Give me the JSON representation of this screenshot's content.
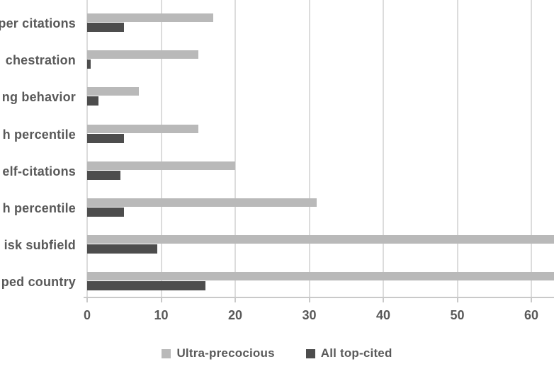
{
  "chart_data": {
    "type": "bar",
    "orientation": "horizontal",
    "title": "",
    "xlabel": "",
    "ylabel": "",
    "categories": [
      "per citations",
      "chestration",
      "ng behavior",
      "h percentile",
      "elf-citations",
      "h percentile",
      "isk subfield",
      "ped country"
    ],
    "categories_note": "category labels are truncated (clipped) at the left edge of the image; only these fragments are visible",
    "series": [
      {
        "name": "Ultra-precocious",
        "color": "#b9b9b9",
        "values": [
          17,
          15,
          7,
          15,
          20,
          31,
          67,
          67
        ],
        "clipped_at_right_edge": [
          false,
          false,
          false,
          false,
          false,
          false,
          true,
          true
        ],
        "values_note": "last two bars run past the right edge of the image; their true ends are not visible (>63)"
      },
      {
        "name": "All top-cited",
        "color": "#4d4d4d",
        "values": [
          5,
          0.5,
          1.5,
          5,
          4.5,
          5,
          9.5,
          16
        ],
        "clipped_at_right_edge": [
          false,
          false,
          false,
          false,
          false,
          false,
          false,
          false
        ]
      }
    ],
    "x_ticks": [
      0,
      10,
      20,
      30,
      40,
      50,
      60
    ],
    "xlim_visible": [
      0,
      63
    ],
    "grid": true,
    "legend_position": "bottom-center"
  },
  "legend": {
    "items": [
      {
        "label": "Ultra-precocious",
        "color": "#b9b9b9"
      },
      {
        "label": "All top-cited",
        "color": "#4d4d4d"
      }
    ]
  },
  "colors": {
    "background": "#ffffff",
    "gridline": "#dcdcdc",
    "axis": "#c9c9c9",
    "text": "#595959",
    "bar_light": "#b9b9b9",
    "bar_dark": "#4d4d4d"
  }
}
